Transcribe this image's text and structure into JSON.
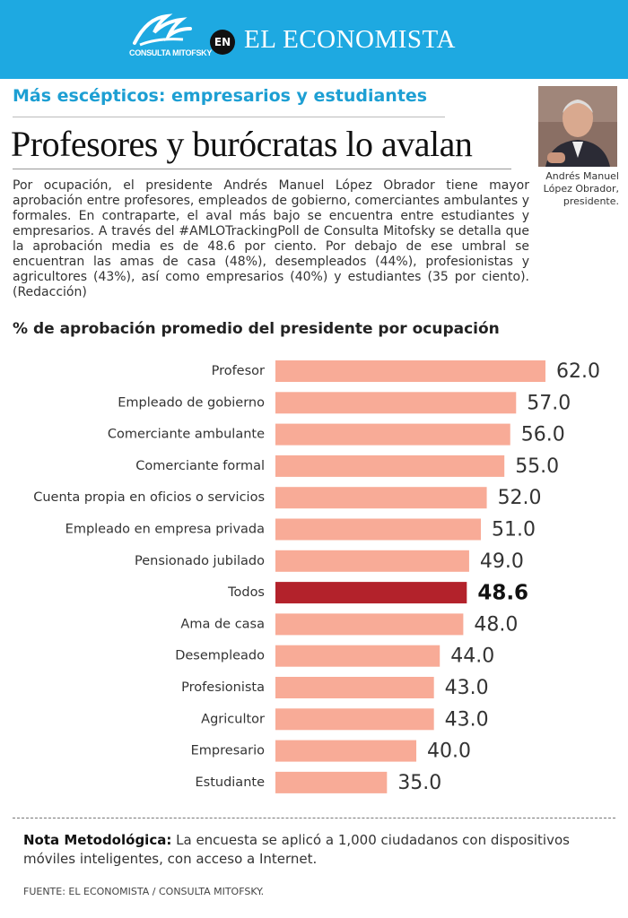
{
  "header": {
    "logo_text": "CONSULTA MITOFSKY",
    "badge": "EN",
    "brand": "EL ECONOMISTA"
  },
  "article": {
    "kicker": "Más escépticos: empresarios y estudiantes",
    "title": "Profesores y burócratas lo avalan",
    "photo_caption": "Andrés Manuel López Obrador, presidente.",
    "body": "Por ocupación, el presidente Andrés Manuel López Obrador tiene mayor aprobación entre profesores, empleados de gobierno, comerciantes ambulantes y formales. En contraparte, el aval más bajo se encuentra entre estudiantes y empresarios. A través del #AMLOTrackingPoll de Consulta Mitofsky se detalla que la aprobación media es de 48.6 por ciento. Por debajo de ese umbral se encuentran las amas de casa (48%), desempleados (44%), profesionistas y agricultores (43%), así como empresarios (40%) y estudiantes (35 por ciento). (Redacción)"
  },
  "chart_data": {
    "type": "bar",
    "orientation": "horizontal",
    "title": "% de aprobación promedio del presidente por ocupación",
    "categories": [
      "Profesor",
      "Empleado de gobierno",
      "Comerciante ambulante",
      "Comerciante formal",
      "Cuenta propia en oficios o servicios",
      "Empleado en empresa privada",
      "Pensionado jubilado",
      "Todos",
      "Ama de casa",
      "Desempleado",
      "Profesionista",
      "Agricultor",
      "Empresario",
      "Estudiante"
    ],
    "values": [
      62,
      57,
      56,
      55,
      52,
      51,
      49,
      48.6,
      48,
      44,
      43,
      43,
      40,
      35
    ],
    "value_labels": [
      "62.0",
      "57.0",
      "56.0",
      "55.0",
      "52.0",
      "51.0",
      "49.0",
      "48.6",
      "48.0",
      "44.0",
      "43.0",
      "43.0",
      "40.0",
      "35.0"
    ],
    "xlim": [
      16,
      62
    ],
    "color": "#f8ab97",
    "highlight_color": "#b3222b",
    "highlight_index": 7
  },
  "footer": {
    "note_label": "Nota Metodológica:",
    "note": "La encuesta se aplicó a 1,000 ciudadanos con dispositivos móviles inteligentes, con acceso a Internet.",
    "source": "FUENTE: EL ECONOMISTA / CONSULTA MITOFSKY."
  }
}
